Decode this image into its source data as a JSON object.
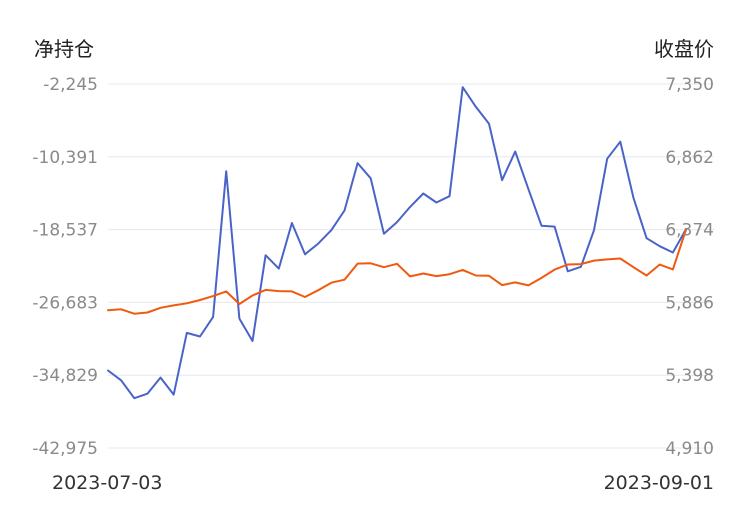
{
  "chart_data": {
    "type": "line",
    "y_left_label": "净持仓",
    "y_right_label": "收盘价",
    "x_start_label": "2023-07-03",
    "x_end_label": "2023-09-01",
    "y_left_ticks": [
      "-2,245",
      "-10,391",
      "-18,537",
      "-26,683",
      "-34,829",
      "-42,975"
    ],
    "y_right_ticks": [
      "7,350",
      "6,862",
      "6,374",
      "5,886",
      "5,398",
      "4,910"
    ],
    "y_left_range": [
      -42975,
      -2245
    ],
    "y_right_range": [
      4910,
      7350
    ],
    "grid": true,
    "series": [
      {
        "color": "#4a63c8",
        "axis": "left",
        "values": [
          -34300,
          -35400,
          -37400,
          -36900,
          -35100,
          -37000,
          -30100,
          -30500,
          -28300,
          -12000,
          -28500,
          -31000,
          -21400,
          -22900,
          -17800,
          -21300,
          -20100,
          -18600,
          -16400,
          -11100,
          -12800,
          -19000,
          -17700,
          -16000,
          -14500,
          -15500,
          -14800,
          -2600,
          -4800,
          -6700,
          -13000,
          -9800,
          -14000,
          -18100,
          -18200,
          -23200,
          -22700,
          -18600,
          -10600,
          -8700,
          -15000,
          -19500,
          -20400,
          -21100,
          -18500
        ]
      },
      {
        "color": "#f05a0f",
        "axis": "right",
        "values": [
          5833,
          5840,
          5810,
          5818,
          5850,
          5866,
          5880,
          5902,
          5928,
          5960,
          5875,
          5932,
          5970,
          5962,
          5960,
          5922,
          5968,
          6018,
          6038,
          6146,
          6148,
          6122,
          6145,
          6060,
          6080,
          6062,
          6075,
          6104,
          6066,
          6064,
          6002,
          6020,
          6000,
          6050,
          6106,
          6140,
          6143,
          6166,
          6174,
          6180,
          6122,
          6066,
          6140,
          6107,
          6374
        ]
      }
    ]
  }
}
